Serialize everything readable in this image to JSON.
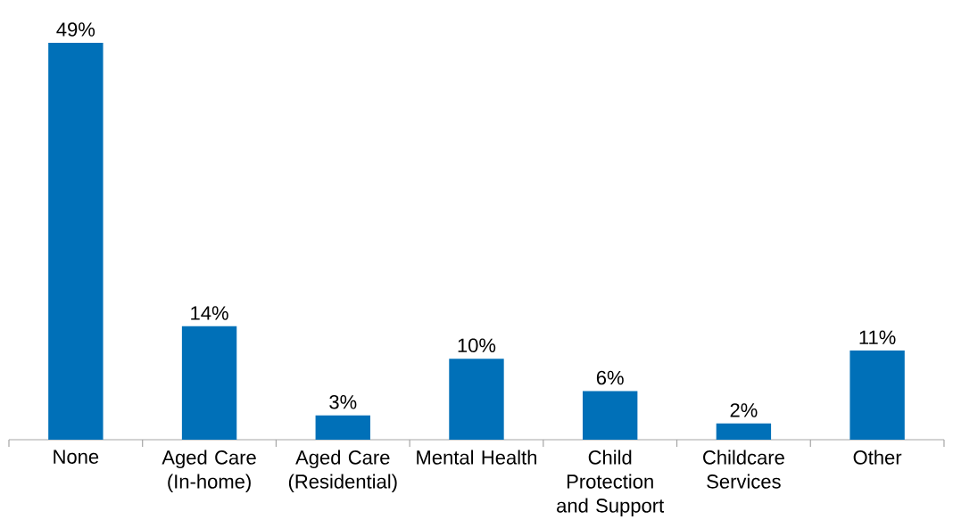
{
  "chart_data": {
    "type": "bar",
    "categories": [
      "None",
      "Aged Care (In-home)",
      "Aged Care (Residential)",
      "Mental Health",
      "Child Protection and Support",
      "Childcare Services",
      "Other"
    ],
    "values": [
      49,
      14,
      3,
      10,
      6,
      2,
      11
    ],
    "value_labels": [
      "49%",
      "14%",
      "3%",
      "10%",
      "6%",
      "2%",
      "11%"
    ],
    "color": "#0070b8"
  }
}
